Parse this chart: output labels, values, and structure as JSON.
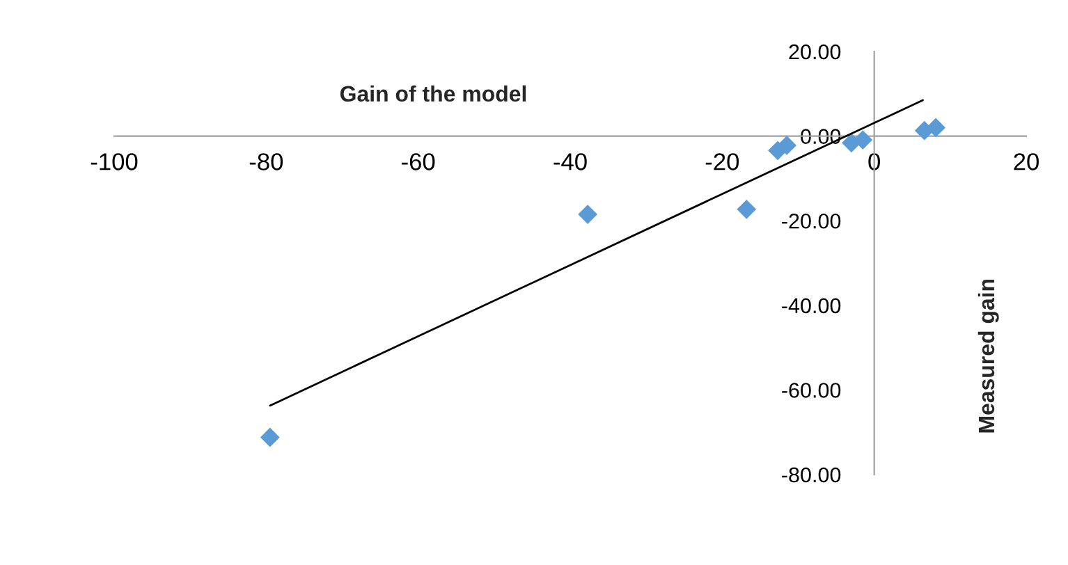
{
  "chart_data": {
    "type": "scatter",
    "xlabel": "Gain of the model",
    "ylabel": "Measured gain",
    "xlim": [
      -100,
      20
    ],
    "xticks": [
      -100,
      -80,
      -60,
      -40,
      -20,
      0,
      20
    ],
    "ylim": [
      -80,
      20
    ],
    "yticks": [
      {
        "value": -80,
        "label": "-80.00"
      },
      {
        "value": -60,
        "label": "-60.00"
      },
      {
        "value": -40,
        "label": "-40.00"
      },
      {
        "value": -20,
        "label": "-20.00"
      },
      {
        "value": 0,
        "label": "0.00"
      },
      {
        "value": 20,
        "label": "20.00"
      }
    ],
    "marker": "diamond",
    "grid": false,
    "legend": false,
    "series": [
      {
        "type": "scatter",
        "color": "#5b9bd5",
        "x": [
          -79.5,
          -37.7,
          -16.8,
          -12.7,
          -11.5,
          -3.0,
          -1.5,
          6.6,
          8.1
        ],
        "values": [
          -71.2,
          -18.5,
          -17.3,
          -3.4,
          -2.2,
          -1.6,
          -0.9,
          1.3,
          2.0
        ]
      },
      {
        "type": "line",
        "marker": "none",
        "color": "#000000",
        "x": [
          -79.5,
          6.4
        ],
        "values": [
          -63.7,
          8.5
        ]
      }
    ]
  }
}
